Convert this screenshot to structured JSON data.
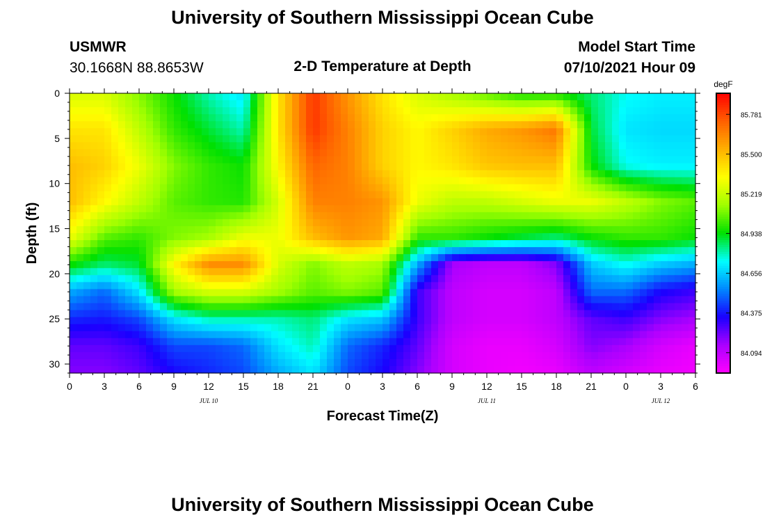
{
  "header": {
    "title": "University of Southern Mississippi Ocean Cube",
    "station": "USMWR",
    "coords": "30.1668N  88.8653W",
    "plot_title": "2-D Temperature at Depth",
    "model_label": "Model Start Time",
    "model_time": "07/10/2021 Hour 09"
  },
  "footer": {
    "title": "University of Southern Mississippi Ocean Cube"
  },
  "chart_data": {
    "type": "heatmap",
    "title": "2-D Temperature at Depth",
    "xlabel": "Forecast Time(Z)",
    "ylabel": "Depth (ft)",
    "x_tick_labels": [
      "0",
      "3",
      "6",
      "9",
      "12",
      "15",
      "18",
      "21",
      "0",
      "3",
      "6",
      "9",
      "12",
      "15",
      "18",
      "21",
      "0",
      "3",
      "6"
    ],
    "x_range_hours": [
      0,
      54
    ],
    "date_labels": [
      {
        "text": "JUL 10",
        "hour": 12
      },
      {
        "text": "JUL 11",
        "hour": 36
      },
      {
        "text": "JUL 12",
        "hour": 51
      }
    ],
    "y_ticks": [
      0,
      5,
      10,
      15,
      20,
      25,
      30
    ],
    "y_range_ft": [
      0,
      31
    ],
    "colorbar": {
      "units": "degF",
      "levels": [
        85.781,
        85.5,
        85.219,
        84.938,
        84.656,
        84.375,
        84.094
      ],
      "range": [
        83.95,
        85.93
      ],
      "colors": [
        "#ff00ff",
        "#aa00ff",
        "#1a00ff",
        "#0088ff",
        "#00ffff",
        "#00e000",
        "#a0ff00",
        "#ffff00",
        "#ffb000",
        "#ff6000",
        "#ff0000"
      ]
    },
    "hours": [
      0,
      3,
      6,
      9,
      12,
      15,
      18,
      21,
      24,
      27,
      30,
      33,
      36,
      39,
      42,
      45,
      48,
      51,
      54
    ],
    "depths_ft": [
      0,
      4,
      8,
      12,
      16,
      19,
      22,
      25,
      28,
      31
    ],
    "temperature_degF": [
      [
        85.25,
        85.25,
        85.1,
        84.95,
        84.8,
        84.7,
        85.4,
        85.82,
        85.6,
        85.4,
        85.25,
        85.15,
        85.05,
        84.95,
        84.95,
        84.85,
        84.75,
        84.72,
        84.72
      ],
      [
        85.4,
        85.4,
        85.2,
        85.0,
        84.9,
        84.8,
        85.4,
        85.82,
        85.65,
        85.45,
        85.35,
        85.45,
        85.55,
        85.6,
        85.68,
        84.9,
        84.7,
        84.68,
        84.68
      ],
      [
        85.5,
        85.45,
        85.3,
        85.1,
        85.0,
        84.95,
        85.35,
        85.72,
        85.65,
        85.45,
        85.35,
        85.4,
        85.48,
        85.5,
        85.5,
        84.95,
        84.75,
        84.72,
        84.72
      ],
      [
        85.5,
        85.35,
        85.2,
        85.05,
        85.0,
        84.98,
        85.25,
        85.65,
        85.65,
        85.6,
        85.3,
        85.2,
        85.2,
        85.25,
        85.3,
        85.3,
        85.2,
        85.1,
        85.05
      ],
      [
        85.3,
        85.05,
        85.0,
        85.1,
        85.15,
        85.3,
        85.3,
        85.5,
        85.6,
        85.55,
        85.0,
        85.0,
        84.95,
        84.9,
        84.85,
        84.95,
        85.0,
        85.0,
        84.95
      ],
      [
        84.95,
        84.85,
        84.9,
        85.35,
        85.62,
        85.62,
        85.25,
        85.1,
        85.2,
        85.15,
        84.6,
        84.15,
        84.1,
        84.1,
        84.2,
        84.65,
        84.75,
        84.65,
        84.6
      ],
      [
        84.6,
        84.5,
        84.7,
        85.15,
        85.25,
        85.25,
        85.15,
        85.05,
        85.1,
        85.05,
        84.3,
        84.1,
        84.05,
        84.05,
        84.1,
        84.5,
        84.5,
        84.35,
        84.3
      ],
      [
        84.4,
        84.38,
        84.45,
        84.7,
        84.8,
        84.8,
        84.8,
        84.85,
        84.7,
        84.65,
        84.3,
        84.1,
        84.05,
        84.05,
        84.1,
        84.25,
        84.3,
        84.2,
        84.15
      ],
      [
        84.25,
        84.25,
        84.3,
        84.45,
        84.45,
        84.5,
        84.7,
        84.8,
        84.5,
        84.4,
        84.25,
        84.05,
        84.0,
        84.0,
        84.05,
        84.2,
        84.15,
        84.05,
        84.0
      ],
      [
        84.2,
        84.2,
        84.25,
        84.35,
        84.4,
        84.45,
        84.6,
        84.7,
        84.45,
        84.35,
        84.2,
        84.05,
        84.0,
        83.98,
        84.0,
        84.1,
        84.05,
        84.0,
        83.98
      ]
    ]
  }
}
